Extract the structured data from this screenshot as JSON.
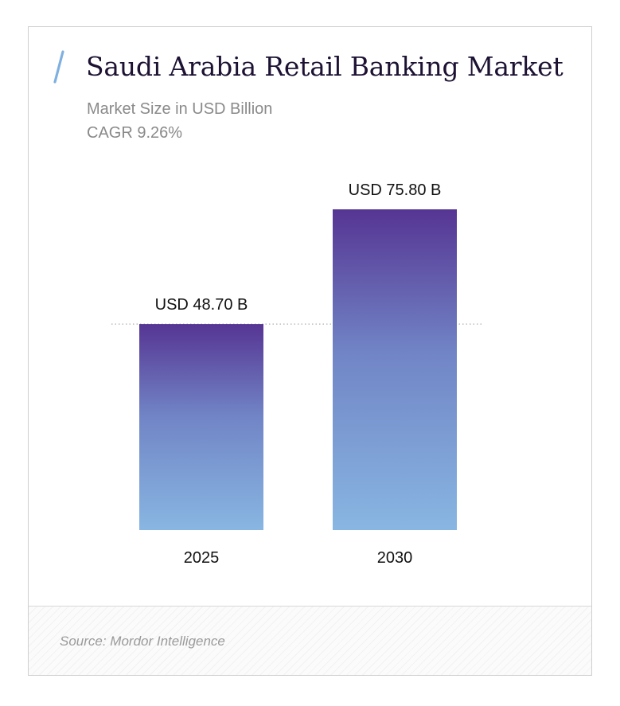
{
  "header": {
    "title": "Saudi Arabia Retail Banking Market",
    "subtitle": "Market Size in USD Billion",
    "cagr": "CAGR 9.26%"
  },
  "footer": {
    "source": "Source: Mordor Intelligence"
  },
  "colors": {
    "bar_top": "#563593",
    "bar_mid": "#7185c6",
    "bar_bottom": "#88b6e2",
    "slash": "#7fb0e0",
    "title": "#1d1233"
  },
  "chart_data": {
    "type": "bar",
    "categories": [
      "2025",
      "2030"
    ],
    "values": [
      48.7,
      75.8
    ],
    "data_labels": [
      "USD 48.70 B",
      "USD 75.80 B"
    ],
    "title": "Saudi Arabia Retail Banking Market",
    "subtitle": "Market Size in USD Billion",
    "annotation": "CAGR 9.26%",
    "ylim": [
      0,
      75.8
    ],
    "grid": false,
    "reference_line": {
      "value": 48.7,
      "style": "dotted"
    }
  }
}
